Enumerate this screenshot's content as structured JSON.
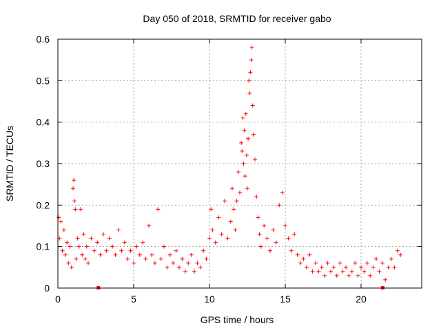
{
  "chart_data": {
    "type": "scatter",
    "title": "Day 050 of 2018, SRMTID for receiver gabo",
    "xlabel": "GPS time / hours",
    "ylabel": "SRMTID / TECUs",
    "xlim": [
      0,
      24
    ],
    "ylim": [
      0,
      0.6
    ],
    "xticks": [
      0,
      5,
      10,
      15,
      20
    ],
    "xtick_labels": [
      "0",
      "5",
      "10",
      "15",
      "20"
    ],
    "yticks": [
      0,
      0.1,
      0.2,
      0.3,
      0.4,
      0.5,
      0.6
    ],
    "ytick_labels": [
      "0",
      "0.1",
      "0.2",
      "0.3",
      "0.4",
      "0.5",
      "0.6"
    ],
    "grid": true,
    "marker": "plus",
    "color": "#ff0000",
    "series": [
      {
        "name": "SRMTID",
        "points": [
          [
            0.05,
            0.17
          ],
          [
            0.1,
            0.12
          ],
          [
            0.2,
            0.16
          ],
          [
            0.3,
            0.09
          ],
          [
            0.4,
            0.14
          ],
          [
            0.5,
            0.08
          ],
          [
            0.6,
            0.11
          ],
          [
            0.7,
            0.06
          ],
          [
            0.8,
            0.1
          ],
          [
            0.9,
            0.05
          ],
          [
            1.0,
            0.24
          ],
          [
            1.05,
            0.26
          ],
          [
            1.1,
            0.21
          ],
          [
            1.15,
            0.19
          ],
          [
            1.2,
            0.07
          ],
          [
            1.3,
            0.12
          ],
          [
            1.4,
            0.1
          ],
          [
            1.5,
            0.19
          ],
          [
            1.6,
            0.08
          ],
          [
            1.7,
            0.13
          ],
          [
            1.8,
            0.07
          ],
          [
            1.9,
            0.1
          ],
          [
            2.0,
            0.06
          ],
          [
            2.2,
            0.12
          ],
          [
            2.4,
            0.09
          ],
          [
            2.6,
            0.11
          ],
          [
            2.8,
            0.08
          ],
          [
            3.0,
            0.13
          ],
          [
            3.2,
            0.09
          ],
          [
            3.4,
            0.12
          ],
          [
            3.6,
            0.1
          ],
          [
            3.8,
            0.08
          ],
          [
            4.0,
            0.14
          ],
          [
            4.2,
            0.09
          ],
          [
            4.4,
            0.11
          ],
          [
            4.6,
            0.07
          ],
          [
            4.8,
            0.09
          ],
          [
            5.0,
            0.06
          ],
          [
            5.2,
            0.1
          ],
          [
            5.4,
            0.08
          ],
          [
            5.6,
            0.11
          ],
          [
            5.8,
            0.07
          ],
          [
            6.0,
            0.15
          ],
          [
            6.2,
            0.08
          ],
          [
            6.4,
            0.06
          ],
          [
            6.6,
            0.19
          ],
          [
            6.8,
            0.07
          ],
          [
            7.0,
            0.1
          ],
          [
            7.2,
            0.05
          ],
          [
            7.4,
            0.08
          ],
          [
            7.6,
            0.06
          ],
          [
            7.8,
            0.09
          ],
          [
            8.0,
            0.05
          ],
          [
            8.2,
            0.07
          ],
          [
            8.4,
            0.04
          ],
          [
            8.6,
            0.06
          ],
          [
            8.8,
            0.08
          ],
          [
            9.0,
            0.04
          ],
          [
            9.2,
            0.06
          ],
          [
            9.4,
            0.05
          ],
          [
            9.6,
            0.09
          ],
          [
            9.8,
            0.07
          ],
          [
            10.0,
            0.12
          ],
          [
            10.1,
            0.19
          ],
          [
            10.2,
            0.14
          ],
          [
            10.4,
            0.11
          ],
          [
            10.6,
            0.17
          ],
          [
            10.8,
            0.13
          ],
          [
            11.0,
            0.21
          ],
          [
            11.2,
            0.12
          ],
          [
            11.4,
            0.16
          ],
          [
            11.5,
            0.24
          ],
          [
            11.6,
            0.19
          ],
          [
            11.7,
            0.14
          ],
          [
            11.8,
            0.21
          ],
          [
            11.9,
            0.28
          ],
          [
            12.0,
            0.23
          ],
          [
            12.1,
            0.35
          ],
          [
            12.15,
            0.33
          ],
          [
            12.2,
            0.41
          ],
          [
            12.25,
            0.3
          ],
          [
            12.3,
            0.38
          ],
          [
            12.35,
            0.27
          ],
          [
            12.4,
            0.42
          ],
          [
            12.45,
            0.32
          ],
          [
            12.5,
            0.24
          ],
          [
            12.55,
            0.36
          ],
          [
            12.6,
            0.5
          ],
          [
            12.65,
            0.47
          ],
          [
            12.7,
            0.52
          ],
          [
            12.75,
            0.55
          ],
          [
            12.8,
            0.58
          ],
          [
            12.85,
            0.44
          ],
          [
            12.9,
            0.37
          ],
          [
            13.0,
            0.31
          ],
          [
            13.1,
            0.22
          ],
          [
            13.2,
            0.17
          ],
          [
            13.3,
            0.13
          ],
          [
            13.4,
            0.1
          ],
          [
            13.6,
            0.15
          ],
          [
            13.8,
            0.12
          ],
          [
            14.0,
            0.09
          ],
          [
            14.2,
            0.14
          ],
          [
            14.4,
            0.11
          ],
          [
            14.6,
            0.2
          ],
          [
            14.8,
            0.23
          ],
          [
            15.0,
            0.15
          ],
          [
            15.2,
            0.12
          ],
          [
            15.4,
            0.09
          ],
          [
            15.6,
            0.13
          ],
          [
            15.8,
            0.08
          ],
          [
            16.0,
            0.06
          ],
          [
            16.2,
            0.07
          ],
          [
            16.4,
            0.05
          ],
          [
            16.6,
            0.08
          ],
          [
            16.8,
            0.04
          ],
          [
            17.0,
            0.06
          ],
          [
            17.2,
            0.04
          ],
          [
            17.4,
            0.05
          ],
          [
            17.6,
            0.03
          ],
          [
            17.8,
            0.06
          ],
          [
            18.0,
            0.04
          ],
          [
            18.2,
            0.05
          ],
          [
            18.4,
            0.03
          ],
          [
            18.6,
            0.06
          ],
          [
            18.8,
            0.04
          ],
          [
            19.0,
            0.05
          ],
          [
            19.2,
            0.03
          ],
          [
            19.4,
            0.04
          ],
          [
            19.6,
            0.06
          ],
          [
            19.8,
            0.03
          ],
          [
            20.0,
            0.05
          ],
          [
            20.2,
            0.04
          ],
          [
            20.4,
            0.06
          ],
          [
            20.6,
            0.03
          ],
          [
            20.8,
            0.05
          ],
          [
            21.0,
            0.07
          ],
          [
            21.2,
            0.04
          ],
          [
            21.4,
            0.06
          ],
          [
            21.6,
            0.02
          ],
          [
            21.8,
            0.05
          ],
          [
            22.0,
            0.07
          ],
          [
            22.2,
            0.05
          ],
          [
            22.4,
            0.09
          ],
          [
            22.6,
            0.08
          ]
        ]
      }
    ],
    "gap_markers_x": [
      2.65,
      21.4
    ]
  }
}
